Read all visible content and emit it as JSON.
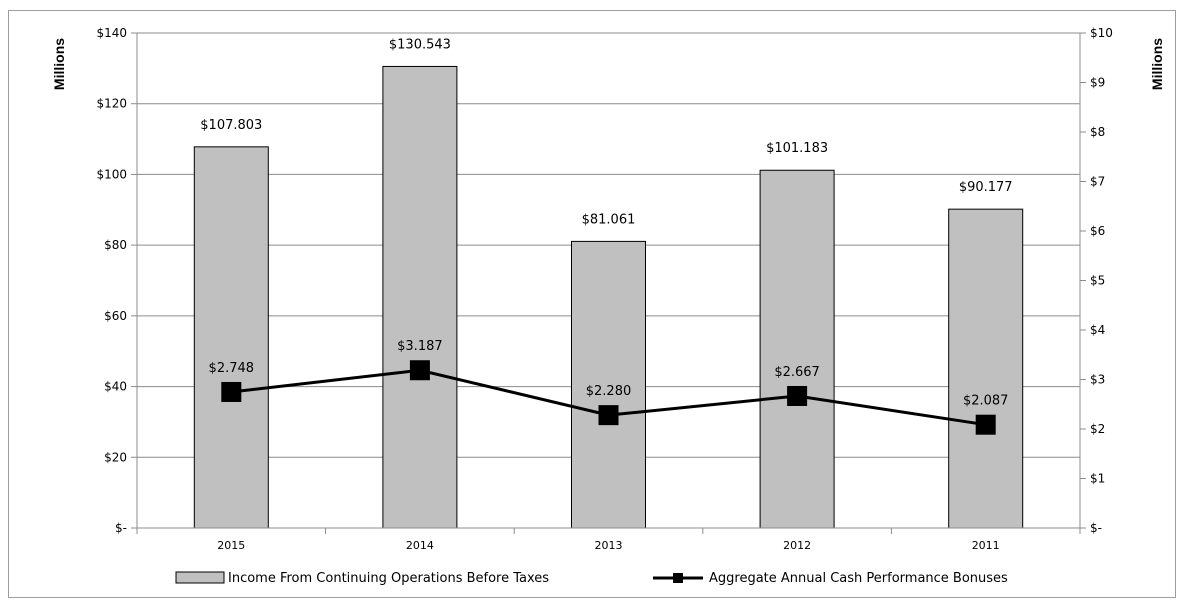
{
  "chart_data": {
    "type": "bar",
    "title": "",
    "xlabel": "",
    "categories": [
      "2015",
      "2014",
      "2013",
      "2012",
      "2011"
    ],
    "series": [
      {
        "name": "Income From Continuing Operations Before Taxes",
        "type": "bar",
        "axis": "left",
        "values": [
          107.803,
          130.543,
          81.061,
          101.183,
          90.177
        ],
        "labels": [
          "$107.803",
          "$130.543",
          "$81.061",
          "$101.183",
          "$90.177"
        ],
        "color": "#c0c0c0"
      },
      {
        "name": "Aggregate Annual Cash Performance Bonuses",
        "type": "line",
        "axis": "right",
        "values": [
          2.748,
          3.187,
          2.28,
          2.667,
          2.087
        ],
        "labels": [
          "$2.748",
          "$3.187",
          "$2.280",
          "$2.667",
          "$2.087"
        ],
        "color": "#000000"
      }
    ],
    "ylabel": "Millions",
    "ylim": [
      0,
      140
    ],
    "yticks": [
      "$-",
      "$20",
      "$40",
      "$60",
      "$80",
      "$100",
      "$120",
      "$140"
    ],
    "y2label": "Millions",
    "y2lim": [
      0,
      10
    ],
    "y2ticks": [
      "$-",
      "$1",
      "$2",
      "$3",
      "$4",
      "$5",
      "$6",
      "$7",
      "$8",
      "$9",
      "$10"
    ],
    "grid": true,
    "legend": "bottom"
  }
}
